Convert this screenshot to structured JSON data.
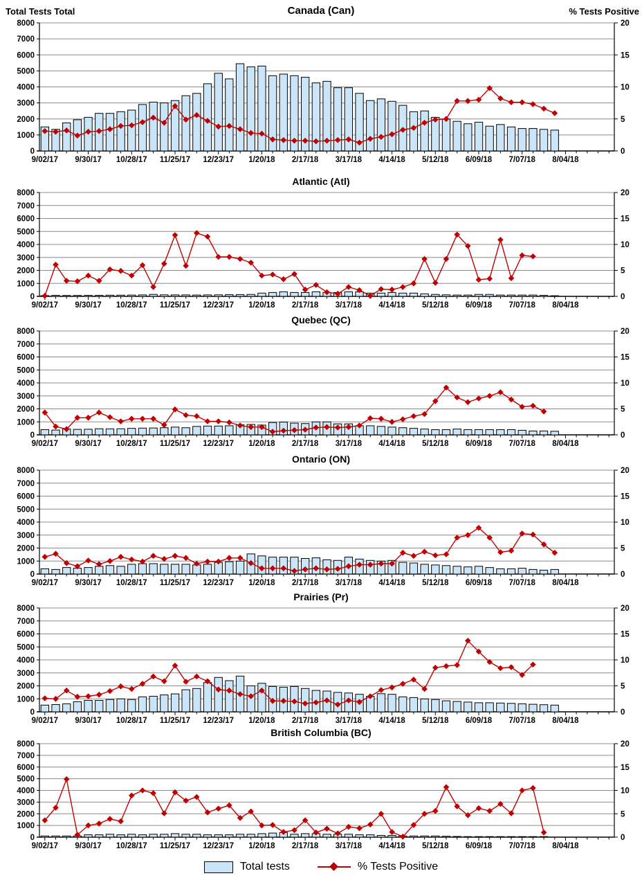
{
  "header": {
    "left_axis_title": "Total Tests Total",
    "right_axis_title": "% Tests Positive"
  },
  "legend": {
    "bar_label": "Total tests",
    "line_label": "% Tests Positive"
  },
  "colors": {
    "bar_fill": "#CBE5F8",
    "bar_stroke": "#000000",
    "line": "#C00000",
    "grid": "#8C8C8C",
    "axis": "#000000"
  },
  "axes": {
    "left_ticks": [
      8000,
      7000,
      6000,
      5000,
      4000,
      3000,
      2000,
      1000,
      0
    ],
    "right_ticks": [
      20,
      15,
      10,
      5,
      0
    ],
    "left_range": [
      0,
      8000
    ],
    "right_range": [
      0,
      20
    ],
    "x_tick_labels": [
      "9/02/17",
      "9/30/17",
      "10/28/17",
      "11/25/17",
      "12/23/17",
      "1/20/18",
      "2/17/18",
      "3/17/18",
      "4/14/18",
      "5/12/18",
      "6/09/18",
      "7/07/18",
      "8/04/18"
    ],
    "x_slot_count": 53,
    "label_every": 4,
    "grid_interval": 1000
  },
  "chart_data": [
    {
      "type": "bar",
      "title": "Canada (Can)",
      "bar_series": "Total tests",
      "line_series": "% Tests Positive",
      "bars": [
        1500,
        1350,
        1750,
        1950,
        2100,
        2350,
        2350,
        2450,
        2550,
        2900,
        3050,
        3000,
        3150,
        3450,
        3600,
        4200,
        4850,
        4500,
        5450,
        5250,
        5300,
        4700,
        4800,
        4700,
        4600,
        4250,
        4350,
        3950,
        3950,
        3600,
        3150,
        3250,
        3100,
        2850,
        2450,
        2500,
        2100,
        2000,
        1850,
        1700,
        1800,
        1550,
        1650,
        1500,
        1400,
        1400,
        1350,
        1300
      ],
      "line": [
        3.1,
        3.0,
        3.2,
        2.4,
        3.0,
        3.1,
        3.4,
        3.9,
        4.0,
        4.5,
        5.2,
        4.4,
        7.0,
        4.9,
        5.6,
        4.7,
        3.8,
        3.9,
        3.4,
        2.8,
        2.7,
        1.8,
        1.7,
        1.6,
        1.6,
        1.5,
        1.6,
        1.7,
        1.8,
        1.3,
        1.9,
        2.2,
        2.6,
        3.3,
        3.6,
        4.4,
        4.9,
        5.0,
        7.8,
        7.8,
        8.0,
        9.8,
        8.2,
        7.6,
        7.6,
        7.3,
        6.6,
        5.9
      ]
    },
    {
      "type": "bar",
      "title": "Atlantic (Atl)",
      "bar_series": "Total tests",
      "line_series": "% Tests Positive",
      "bars": [
        60,
        80,
        70,
        70,
        80,
        80,
        90,
        90,
        100,
        110,
        150,
        120,
        110,
        110,
        100,
        110,
        120,
        130,
        140,
        150,
        250,
        300,
        350,
        300,
        300,
        350,
        300,
        300,
        350,
        350,
        250,
        250,
        300,
        250,
        250,
        200,
        150,
        120,
        100,
        100,
        150,
        150,
        100,
        100,
        100,
        100,
        80,
        50
      ],
      "line": [
        0.1,
        6.1,
        3.0,
        2.9,
        4.0,
        3.0,
        5.2,
        4.9,
        4.0,
        6.0,
        1.8,
        6.3,
        11.8,
        5.9,
        12.2,
        11.5,
        7.6,
        7.6,
        7.2,
        6.5,
        4.0,
        4.2,
        3.3,
        4.3,
        1.3,
        2.2,
        0.8,
        0.5,
        1.8,
        1.2,
        0.1,
        1.4,
        1.3,
        1.8,
        2.5,
        7.2,
        2.6,
        7.2,
        11.9,
        9.7,
        3.2,
        3.4,
        10.9,
        3.5,
        7.9,
        7.7,
        null,
        null
      ]
    },
    {
      "type": "bar",
      "title": "Quebec (QC)",
      "bar_series": "Total tests",
      "line_series": "% Tests Positive",
      "bars": [
        400,
        370,
        450,
        420,
        430,
        470,
        460,
        470,
        500,
        520,
        530,
        550,
        600,
        550,
        650,
        680,
        680,
        700,
        780,
        800,
        750,
        950,
        980,
        900,
        870,
        1000,
        1000,
        850,
        850,
        700,
        700,
        650,
        600,
        550,
        500,
        450,
        400,
        400,
        450,
        400,
        400,
        400,
        400,
        400,
        350,
        300,
        300,
        280
      ],
      "line": [
        4.3,
        1.6,
        1.1,
        3.3,
        3.3,
        4.3,
        3.4,
        2.6,
        3.1,
        3.1,
        3.1,
        1.9,
        4.9,
        3.8,
        3.6,
        2.6,
        2.6,
        2.4,
        1.8,
        1.5,
        1.5,
        0.6,
        0.8,
        0.9,
        1.0,
        1.4,
        1.5,
        1.4,
        1.5,
        1.8,
        3.2,
        3.1,
        2.5,
        3.0,
        3.6,
        4.0,
        6.5,
        9.1,
        7.2,
        6.3,
        7.0,
        7.5,
        8.2,
        6.8,
        5.4,
        5.6,
        4.5,
        null
      ]
    },
    {
      "type": "bar",
      "title": "Ontario (ON)",
      "bar_series": "Total tests",
      "line_series": "% Tests Positive",
      "bars": [
        400,
        350,
        500,
        450,
        500,
        600,
        650,
        600,
        750,
        800,
        800,
        750,
        750,
        750,
        700,
        750,
        900,
        950,
        1000,
        1550,
        1400,
        1300,
        1300,
        1300,
        1200,
        1250,
        1100,
        1050,
        1300,
        1150,
        1050,
        1000,
        1050,
        900,
        850,
        750,
        700,
        650,
        600,
        550,
        600,
        500,
        400,
        400,
        450,
        350,
        300,
        350
      ],
      "line": [
        3.3,
        3.9,
        2.1,
        1.5,
        2.6,
        1.9,
        2.5,
        3.3,
        2.8,
        2.4,
        3.5,
        2.9,
        3.5,
        3.1,
        2.0,
        2.4,
        2.4,
        3.1,
        3.1,
        2.1,
        1.1,
        1.1,
        1.1,
        0.6,
        0.9,
        1.1,
        0.9,
        1.0,
        1.5,
        1.8,
        1.8,
        2.0,
        2.0,
        4.1,
        3.5,
        4.3,
        3.6,
        3.8,
        7.0,
        7.5,
        8.9,
        7.0,
        4.2,
        4.5,
        7.8,
        7.6,
        5.7,
        4.1
      ]
    },
    {
      "type": "bar",
      "title": "Prairies (Pr)",
      "bar_series": "Total tests",
      "line_series": "% Tests Positive",
      "bars": [
        520,
        560,
        620,
        780,
        880,
        880,
        950,
        1000,
        950,
        1150,
        1200,
        1300,
        1380,
        1700,
        1800,
        2250,
        2650,
        2400,
        2750,
        2000,
        2200,
        1950,
        1900,
        1950,
        1800,
        1650,
        1600,
        1500,
        1450,
        1350,
        1200,
        1400,
        1350,
        1150,
        1100,
        1000,
        950,
        850,
        800,
        750,
        700,
        700,
        680,
        650,
        620,
        580,
        550,
        520
      ],
      "line": [
        2.6,
        2.5,
        4.1,
        2.9,
        3.0,
        3.3,
        4.0,
        4.9,
        4.4,
        5.4,
        6.8,
        5.9,
        8.9,
        5.8,
        6.8,
        5.9,
        4.3,
        4.1,
        3.4,
        3.0,
        4.1,
        2.1,
        2.1,
        2.0,
        1.6,
        1.8,
        2.2,
        1.4,
        2.2,
        1.9,
        3.0,
        4.2,
        4.7,
        5.4,
        6.2,
        4.4,
        8.5,
        8.8,
        9.0,
        13.7,
        11.6,
        9.6,
        8.4,
        8.6,
        7.1,
        9.1,
        null,
        null
      ]
    },
    {
      "type": "bar",
      "title": "British Columbia (BC)",
      "bar_series": "Total tests",
      "line_series": "% Tests Positive",
      "bars": [
        100,
        100,
        100,
        100,
        200,
        200,
        250,
        200,
        250,
        200,
        250,
        250,
        300,
        250,
        250,
        200,
        200,
        200,
        250,
        250,
        300,
        350,
        400,
        250,
        300,
        300,
        250,
        250,
        250,
        200,
        200,
        150,
        150,
        100,
        100,
        100,
        100,
        80,
        60,
        50,
        50,
        50,
        50,
        50,
        50,
        50,
        50,
        null
      ],
      "line": [
        3.6,
        6.3,
        12.4,
        0.5,
        2.5,
        2.9,
        3.9,
        3.4,
        8.9,
        10.0,
        9.4,
        5.1,
        9.6,
        7.8,
        8.6,
        5.3,
        6.1,
        6.8,
        4.1,
        5.5,
        2.5,
        2.6,
        1.1,
        1.5,
        3.6,
        1.0,
        1.8,
        0.8,
        2.2,
        1.9,
        2.7,
        5.0,
        1.1,
        0.1,
        2.6,
        5.0,
        5.6,
        10.7,
        6.6,
        4.7,
        6.2,
        5.6,
        7.1,
        5.1,
        10.0,
        10.5,
        1.0,
        null
      ]
    }
  ]
}
